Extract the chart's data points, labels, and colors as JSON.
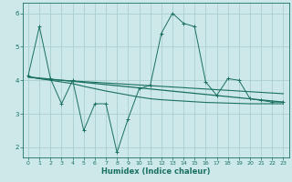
{
  "xlabel": "Humidex (Indice chaleur)",
  "bg_color": "#cce8e8",
  "grid_color": "#aacfcf",
  "line_color": "#1a7060",
  "xlim": [
    -0.5,
    23.5
  ],
  "ylim": [
    1.7,
    6.3
  ],
  "xticks": [
    0,
    1,
    2,
    3,
    4,
    5,
    6,
    7,
    8,
    9,
    10,
    11,
    12,
    13,
    14,
    15,
    16,
    17,
    18,
    19,
    20,
    21,
    22,
    23
  ],
  "yticks": [
    2,
    3,
    4,
    5,
    6
  ],
  "line1_x": [
    0,
    1,
    2,
    3,
    4,
    5,
    6,
    7,
    8,
    9,
    10,
    11,
    12,
    13,
    14,
    15,
    16,
    17,
    18,
    19,
    20,
    21,
    22,
    23
  ],
  "line1_y": [
    4.15,
    5.6,
    4.05,
    3.3,
    4.0,
    2.5,
    3.3,
    3.3,
    1.85,
    2.85,
    3.75,
    3.85,
    5.4,
    6.0,
    5.7,
    5.6,
    3.95,
    3.55,
    4.05,
    4.0,
    3.45,
    3.4,
    3.35,
    3.35
  ],
  "line2_x": [
    0,
    1,
    2,
    3,
    4,
    5,
    6,
    7,
    8,
    9,
    10,
    11,
    12,
    13,
    14,
    15,
    16,
    17,
    18,
    19,
    20,
    21,
    22,
    23
  ],
  "line2_y": [
    4.1,
    4.05,
    4.02,
    4.0,
    3.98,
    3.96,
    3.94,
    3.92,
    3.9,
    3.88,
    3.86,
    3.84,
    3.82,
    3.8,
    3.78,
    3.76,
    3.74,
    3.72,
    3.7,
    3.68,
    3.66,
    3.64,
    3.62,
    3.6
  ],
  "line3_x": [
    0,
    23
  ],
  "line3_y": [
    4.1,
    3.35
  ],
  "line4_x": [
    0,
    1,
    2,
    3,
    4,
    5,
    6,
    7,
    8,
    9,
    10,
    11,
    12,
    13,
    14,
    15,
    16,
    17,
    18,
    19,
    20,
    21,
    22,
    23
  ],
  "line4_y": [
    4.1,
    4.05,
    4.0,
    3.95,
    3.9,
    3.82,
    3.75,
    3.68,
    3.62,
    3.56,
    3.5,
    3.45,
    3.42,
    3.4,
    3.38,
    3.36,
    3.34,
    3.33,
    3.32,
    3.31,
    3.3,
    3.3,
    3.3,
    3.3
  ]
}
